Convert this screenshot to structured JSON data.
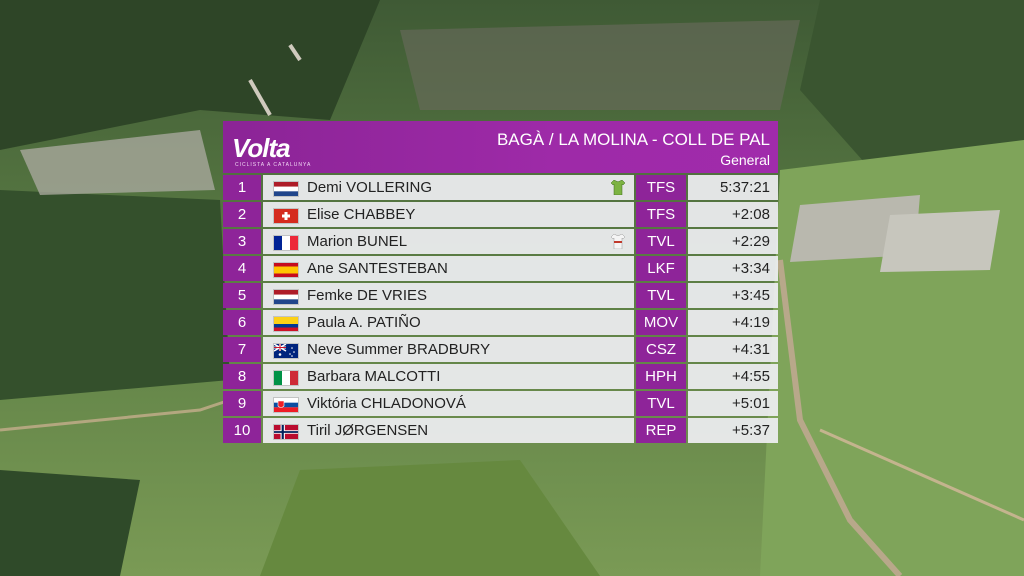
{
  "header": {
    "logo": "Volta",
    "logo_sub": "CICLISTA A CATALUNYA",
    "title": "BAGÀ / LA MOLINA - COLL DE PAL",
    "subtitle": "General"
  },
  "rows": [
    {
      "pos": "1",
      "flag": "NED",
      "name": "Demi VOLLERING",
      "team": "TFS",
      "time": "5:37:21",
      "jersey": "green"
    },
    {
      "pos": "2",
      "flag": "SUI",
      "name": "Elise CHABBEY",
      "team": "TFS",
      "time": "+2:08"
    },
    {
      "pos": "3",
      "flag": "FRA",
      "name": "Marion BUNEL",
      "team": "TVL",
      "time": "+2:29",
      "jersey": "white"
    },
    {
      "pos": "4",
      "flag": "ESP",
      "name": "Ane SANTESTEBAN",
      "team": "LKF",
      "time": "+3:34"
    },
    {
      "pos": "5",
      "flag": "NED",
      "name": "Femke DE VRIES",
      "team": "TVL",
      "time": "+3:45"
    },
    {
      "pos": "6",
      "flag": "COL",
      "name": "Paula A. PATIÑO",
      "team": "MOV",
      "time": "+4:19"
    },
    {
      "pos": "7",
      "flag": "AUS",
      "name": "Neve Summer BRADBURY",
      "team": "CSZ",
      "time": "+4:31"
    },
    {
      "pos": "8",
      "flag": "ITA",
      "name": "Barbara MALCOTTI",
      "team": "HPH",
      "time": "+4:55"
    },
    {
      "pos": "9",
      "flag": "SVK",
      "name": "Viktória CHLADONOVÁ",
      "team": "TVL",
      "time": "+5:01"
    },
    {
      "pos": "10",
      "flag": "NOR",
      "name": "Tiril JØRGENSEN",
      "team": "REP",
      "time": "+5:37"
    }
  ],
  "colors": {
    "accent": "#8e2499",
    "header": "#9e2aa8",
    "row_bg": "#eeeef2"
  }
}
